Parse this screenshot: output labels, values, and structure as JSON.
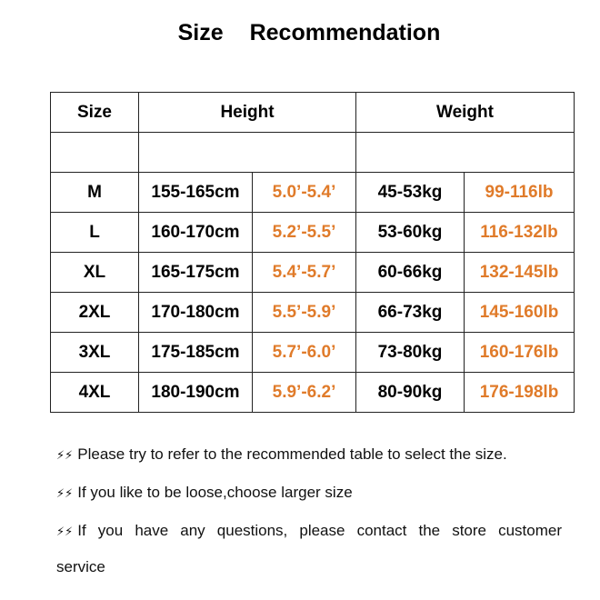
{
  "title": "Size Recommendation",
  "table": {
    "headers": {
      "size": "Size",
      "height": "Height",
      "weight": "Weight"
    },
    "rows": [
      {
        "size": "M",
        "cm": "155-165cm",
        "ft": "5.0’-5.4’",
        "kg": "45-53kg",
        "lb": "99-116lb"
      },
      {
        "size": "L",
        "cm": "160-170cm",
        "ft": "5.2’-5.5’",
        "kg": "53-60kg",
        "lb": "116-132lb"
      },
      {
        "size": "XL",
        "cm": "165-175cm",
        "ft": "5.4’-5.7’",
        "kg": "60-66kg",
        "lb": "132-145lb"
      },
      {
        "size": "2XL",
        "cm": "170-180cm",
        "ft": "5.5’-5.9’",
        "kg": "66-73kg",
        "lb": "145-160lb"
      },
      {
        "size": "3XL",
        "cm": "175-185cm",
        "ft": "5.7’-6.0’",
        "kg": "73-80kg",
        "lb": "160-176lb"
      },
      {
        "size": "4XL",
        "cm": "180-190cm",
        "ft": "5.9’-6.2’",
        "kg": "80-90kg",
        "lb": "176-198lb"
      }
    ]
  },
  "notes": [
    "Please try to refer to the recommended table to select the size.",
    "If you like to be loose,choose larger size",
    "If you have any questions, please contact the store customer",
    "service"
  ],
  "icons": {
    "note_bullet": "lightning-bolt-icon",
    "bullet_glyph": "⚡"
  },
  "colors": {
    "imperial_values": "#e07b2a",
    "border": "#222222"
  }
}
